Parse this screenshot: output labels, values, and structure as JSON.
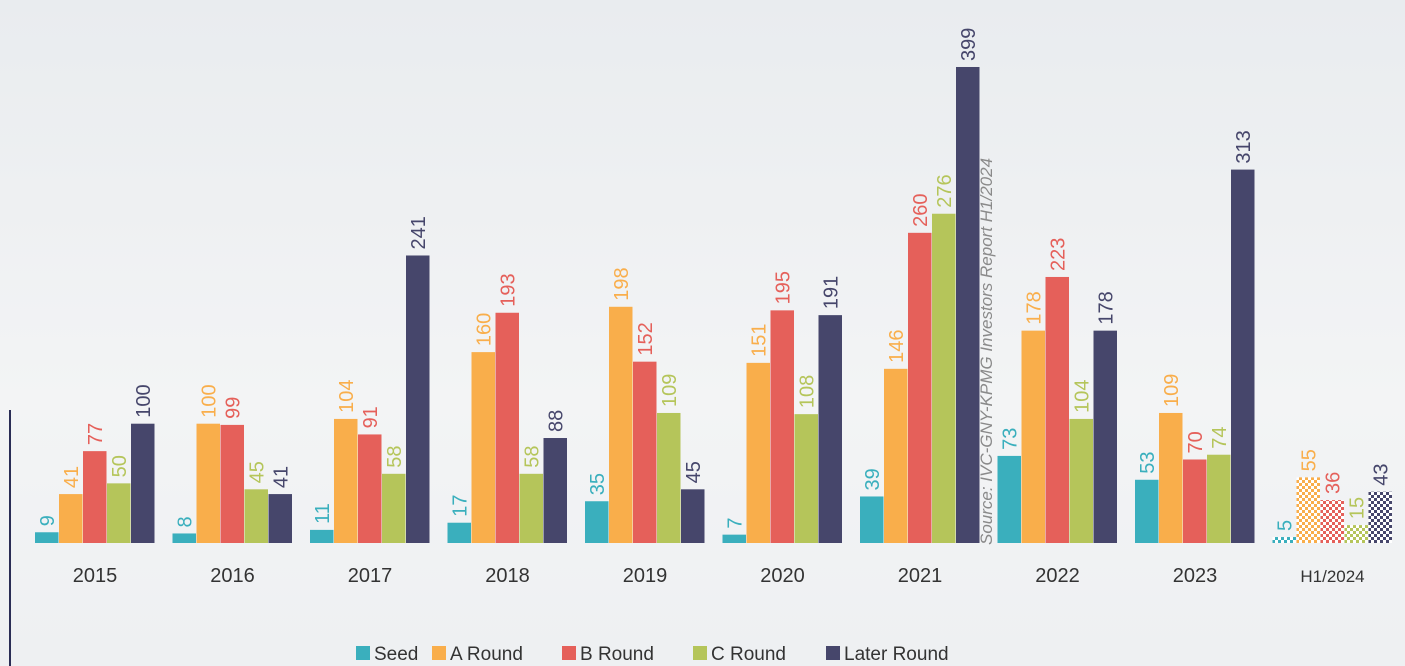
{
  "chart_data": {
    "type": "bar",
    "categories": [
      "2015",
      "2016",
      "2017",
      "2018",
      "2019",
      "2020",
      "2021",
      "2022",
      "2023",
      "H1/2024"
    ],
    "series": [
      {
        "name": "Seed",
        "color": "#3aafbd",
        "values": [
          9,
          8,
          11,
          17,
          35,
          7,
          39,
          73,
          53,
          5
        ]
      },
      {
        "name": "A Round",
        "color": "#f9ae4b",
        "values": [
          41,
          100,
          104,
          160,
          198,
          151,
          146,
          178,
          109,
          55
        ]
      },
      {
        "name": "B Round",
        "color": "#e5605a",
        "values": [
          77,
          99,
          91,
          193,
          152,
          195,
          260,
          223,
          70,
          36
        ]
      },
      {
        "name": "C Round",
        "color": "#b5c55a",
        "values": [
          50,
          45,
          58,
          58,
          109,
          108,
          276,
          104,
          74,
          15
        ]
      },
      {
        "name": "Later Round",
        "color": "#46466b",
        "values": [
          100,
          41,
          241,
          88,
          45,
          191,
          399,
          178,
          313,
          43
        ]
      }
    ],
    "annotation": "Source: IVC-GNY-KPMG Investors Report H1/2024"
  }
}
